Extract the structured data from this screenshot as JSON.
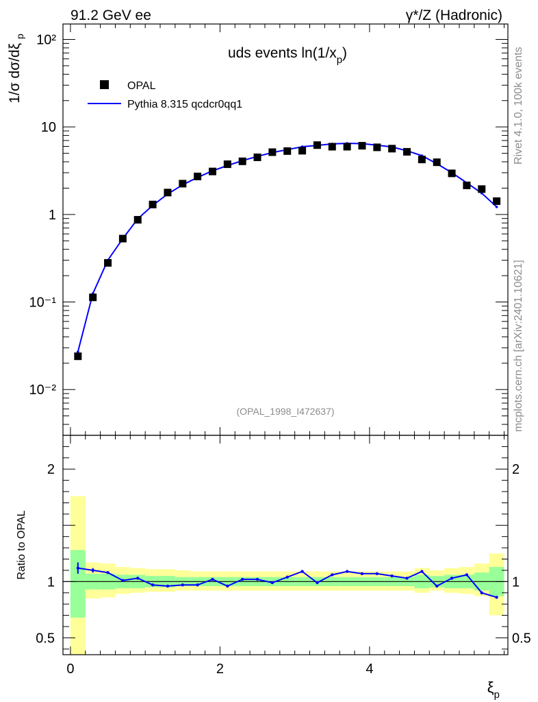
{
  "header": {
    "left_title": "91.2 GeV ee",
    "right_title": "γ*/Z (Hadronic)"
  },
  "side_labels": {
    "rivet": "Rivet 4.1.0,  100k events",
    "mcplots": "mcplots.cern.ch [arXiv:2401.10621]"
  },
  "chart_data": {
    "type": "scatter",
    "title": "uds events ln(1/x_p)",
    "analysis_label": "(OPAL_1998_I472637)",
    "xlabel": "ξ_p",
    "ylabel": "1/σ dσ/dξ_p",
    "ratio_ylabel": "Ratio to OPAL",
    "xlim": [
      -0.1,
      5.85
    ],
    "ylim": [
      0.003,
      150
    ],
    "yscale": "log",
    "ratio_ylim": [
      0.35,
      2.3
    ],
    "x_ticks": [
      "0",
      "2",
      "4"
    ],
    "y_tick_labels": [
      "10⁻²",
      "10⁻¹",
      "1",
      "10",
      "10²"
    ],
    "ratio_tick_labels": [
      "0.5",
      "1",
      "2"
    ],
    "legend": [
      "OPAL",
      "Pythia 8.315 qcdcr0qq1"
    ],
    "legend_position": "top-left",
    "x": [
      0.1,
      0.3,
      0.5,
      0.7,
      0.9,
      1.1,
      1.3,
      1.5,
      1.7,
      1.9,
      2.1,
      2.3,
      2.5,
      2.7,
      2.9,
      3.1,
      3.3,
      3.5,
      3.7,
      3.9,
      4.1,
      4.3,
      4.5,
      4.7,
      4.9,
      5.1,
      5.3,
      5.5,
      5.7
    ],
    "series": [
      {
        "name": "OPAL",
        "values": [
          0.024,
          0.113,
          0.28,
          0.53,
          0.87,
          1.3,
          1.78,
          2.25,
          2.72,
          3.1,
          3.75,
          4.05,
          4.5,
          5.15,
          5.3,
          5.35,
          6.2,
          5.95,
          5.95,
          6.1,
          5.85,
          5.65,
          5.2,
          4.25,
          3.95,
          2.95,
          2.15,
          1.95,
          1.42
        ]
      },
      {
        "name": "Pythia 8.315 qcdcr0qq1",
        "values": [
          0.027,
          0.125,
          0.3,
          0.53,
          0.89,
          1.27,
          1.71,
          2.18,
          2.65,
          3.15,
          3.62,
          4.12,
          4.6,
          5.1,
          5.5,
          5.95,
          6.15,
          6.4,
          6.5,
          6.45,
          6.2,
          5.9,
          5.35,
          4.7,
          3.8,
          3.0,
          2.3,
          1.75,
          1.22
        ]
      }
    ],
    "ratio_series": [
      1.12,
      1.1,
      1.08,
      1.01,
      1.03,
      0.97,
      0.96,
      0.97,
      0.97,
      1.02,
      0.96,
      1.02,
      1.02,
      0.99,
      1.04,
      1.09,
      0.99,
      1.06,
      1.09,
      1.07,
      1.07,
      1.05,
      1.03,
      1.09,
      0.96,
      1.03,
      1.06,
      0.9,
      0.86
    ],
    "ratio_errors": [
      0.05,
      0.02,
      0.01,
      0.01,
      0.01,
      0.01,
      0.005,
      0.005,
      0.005,
      0.005,
      0.005,
      0.005,
      0.005,
      0.005,
      0.005,
      0.005,
      0.005,
      0.005,
      0.005,
      0.005,
      0.005,
      0.005,
      0.005,
      0.005,
      0.005,
      0.005,
      0.005,
      0.005,
      0.005
    ],
    "band_stat": [
      [
        0.68,
        1.28
      ],
      [
        0.93,
        1.07
      ],
      [
        0.93,
        1.07
      ],
      [
        0.94,
        1.06
      ],
      [
        0.94,
        1.06
      ],
      [
        0.95,
        1.05
      ],
      [
        0.95,
        1.05
      ],
      [
        0.96,
        1.04
      ],
      [
        0.96,
        1.04
      ],
      [
        0.96,
        1.04
      ],
      [
        0.96,
        1.04
      ],
      [
        0.96,
        1.04
      ],
      [
        0.96,
        1.04
      ],
      [
        0.96,
        1.04
      ],
      [
        0.96,
        1.04
      ],
      [
        0.96,
        1.04
      ],
      [
        0.96,
        1.04
      ],
      [
        0.96,
        1.04
      ],
      [
        0.96,
        1.04
      ],
      [
        0.96,
        1.04
      ],
      [
        0.96,
        1.04
      ],
      [
        0.96,
        1.04
      ],
      [
        0.96,
        1.04
      ],
      [
        0.94,
        1.06
      ],
      [
        0.95,
        1.05
      ],
      [
        0.94,
        1.06
      ],
      [
        0.94,
        1.06
      ],
      [
        0.92,
        1.08
      ],
      [
        0.87,
        1.13
      ]
    ],
    "band_total": [
      [
        0.3,
        1.76
      ],
      [
        0.85,
        1.17
      ],
      [
        0.86,
        1.16
      ],
      [
        0.89,
        1.13
      ],
      [
        0.9,
        1.12
      ],
      [
        0.91,
        1.11
      ],
      [
        0.91,
        1.11
      ],
      [
        0.92,
        1.1
      ],
      [
        0.92,
        1.09
      ],
      [
        0.92,
        1.09
      ],
      [
        0.92,
        1.09
      ],
      [
        0.92,
        1.09
      ],
      [
        0.92,
        1.09
      ],
      [
        0.92,
        1.09
      ],
      [
        0.92,
        1.09
      ],
      [
        0.92,
        1.09
      ],
      [
        0.92,
        1.09
      ],
      [
        0.92,
        1.09
      ],
      [
        0.92,
        1.09
      ],
      [
        0.92,
        1.09
      ],
      [
        0.92,
        1.09
      ],
      [
        0.92,
        1.09
      ],
      [
        0.92,
        1.09
      ],
      [
        0.9,
        1.12
      ],
      [
        0.92,
        1.1
      ],
      [
        0.9,
        1.12
      ],
      [
        0.89,
        1.13
      ],
      [
        0.87,
        1.16
      ],
      [
        0.7,
        1.25
      ]
    ]
  }
}
